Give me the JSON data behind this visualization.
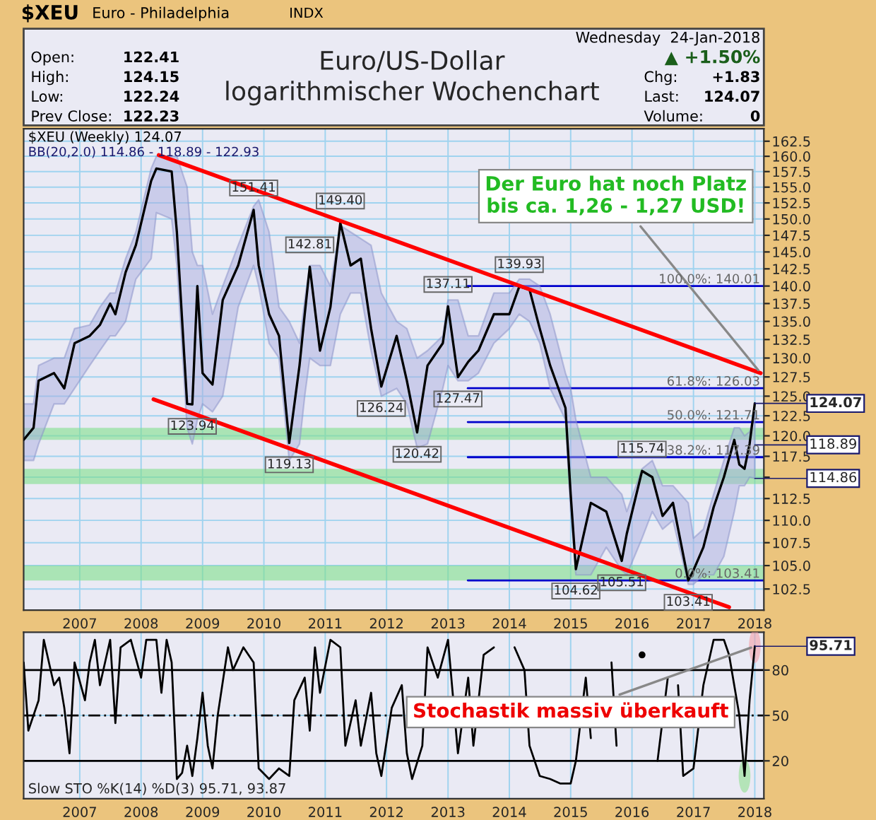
{
  "chart_data": [
    {
      "type": "line",
      "title": "Euro/US-Dollar\nlogarithmischer Wochenchart",
      "log": "y",
      "grid": true,
      "legend": false,
      "xlim": [
        "2006-02-01",
        "2018-02-24"
      ],
      "xticks": [
        {
          "value": "2007-01-01",
          "label": "2007"
        },
        {
          "value": "2008-01-01",
          "label": "2008"
        },
        {
          "value": "2009-01-01",
          "label": "2009"
        },
        {
          "value": "2010-01-01",
          "label": "2010"
        },
        {
          "value": "2011-01-01",
          "label": "2011"
        },
        {
          "value": "2012-01-01",
          "label": "2012"
        },
        {
          "value": "2013-01-01",
          "label": "2013"
        },
        {
          "value": "2014-01-01",
          "label": "2014"
        },
        {
          "value": "2015-01-01",
          "label": "2015"
        },
        {
          "value": "2016-01-01",
          "label": "2016"
        },
        {
          "value": "2017-01-01",
          "label": "2017"
        },
        {
          "value": "2018-01-01",
          "label": "2018"
        }
      ],
      "ylim": [
        100.3,
        164.6
      ],
      "yticks": [
        {
          "value": 102.5,
          "label": "102.5"
        },
        {
          "value": 105,
          "label": "105.0"
        },
        {
          "value": 107.5,
          "label": "107.5"
        },
        {
          "value": 110,
          "label": "110.0"
        },
        {
          "value": 112.5,
          "label": "112.5"
        },
        {
          "value": 115,
          "label": null
        },
        {
          "value": 117.5,
          "label": "117.5"
        },
        {
          "value": 120,
          "label": "120.0"
        },
        {
          "value": 122.5,
          "label": "122.5"
        },
        {
          "value": 125,
          "label": "125.0"
        },
        {
          "value": 127.5,
          "label": "127.5"
        },
        {
          "value": 130,
          "label": "130.0"
        },
        {
          "value": 132.5,
          "label": "132.5"
        },
        {
          "value": 135,
          "label": "135.0"
        },
        {
          "value": 137.5,
          "label": "137.5"
        },
        {
          "value": 140,
          "label": "140.0"
        },
        {
          "value": 142.5,
          "label": "142.5"
        },
        {
          "value": 145,
          "label": "145.0"
        },
        {
          "value": 147.5,
          "label": "147.5"
        },
        {
          "value": 150,
          "label": "150.0"
        },
        {
          "value": 152.5,
          "label": "152.5"
        },
        {
          "value": 155,
          "label": "155.0"
        },
        {
          "value": 157.5,
          "label": "157.5"
        },
        {
          "value": 160,
          "label": "160.0"
        },
        {
          "value": 162.5,
          "label": "162.5"
        }
      ],
      "series": [
        {
          "color": "#000000",
          "x": [
            "2006-02",
            "2006-04",
            "2006-05",
            "2006-08",
            "2006-10",
            "2006-12",
            "2007-03",
            "2007-05",
            "2007-07",
            "2007-08",
            "2007-10",
            "2007-12",
            "2008-03",
            "2008-04",
            "2008-07",
            "2008-08",
            "2008-10",
            "2008-11",
            "2008-12",
            "2009-01",
            "2009-03",
            "2009-05",
            "2009-08",
            "2009-11",
            "2009-12",
            "2010-02",
            "2010-04",
            "2010-06",
            "2010-08",
            "2010-09",
            "2010-10",
            "2010-12",
            "2011-02",
            "2011-04",
            "2011-06",
            "2011-08",
            "2011-10",
            "2011-12",
            "2012-03",
            "2012-05",
            "2012-07",
            "2012-09",
            "2012-12",
            "2013-01",
            "2013-03",
            "2013-05",
            "2013-07",
            "2013-10",
            "2014-01",
            "2014-03",
            "2014-05",
            "2014-07",
            "2014-09",
            "2014-12",
            "2015-01",
            "2015-02",
            "2015-05",
            "2015-08",
            "2015-11",
            "2015-12",
            "2016-03",
            "2016-05",
            "2016-07",
            "2016-09",
            "2016-12",
            "2017-01",
            "2017-03",
            "2017-05",
            "2017-07",
            "2017-09",
            "2017-10",
            "2017-11",
            "2017-12",
            "2018-01"
          ],
          "values": [
            119.5,
            121,
            127,
            128,
            126,
            132,
            133,
            134.5,
            137.5,
            136,
            142,
            146,
            156,
            158,
            157.5,
            148,
            124,
            123.94,
            140,
            128,
            126.5,
            138,
            143,
            151.41,
            143,
            136,
            133,
            119.13,
            129,
            136,
            142.81,
            131,
            137,
            149.4,
            143,
            144,
            134,
            126.24,
            133,
            127,
            120.42,
            129,
            132,
            137.11,
            127.47,
            129.5,
            131,
            136,
            136,
            139.93,
            139.5,
            134,
            129,
            123.5,
            113,
            104.62,
            112,
            111,
            105.51,
            108.5,
            115.74,
            115,
            110.5,
            112,
            103.41,
            104.5,
            107,
            111.5,
            115,
            119.5,
            116.5,
            116,
            119,
            124.07
          ],
          "lower": [
            117,
            117,
            119,
            124,
            124,
            126,
            129,
            131,
            133,
            133,
            135,
            141,
            144,
            151,
            150,
            143,
            121,
            119,
            122,
            124,
            123,
            125,
            137,
            143,
            140,
            132,
            130,
            117,
            119,
            125,
            130,
            129,
            129,
            136,
            139,
            139,
            131,
            125,
            126,
            124,
            118.5,
            119,
            126,
            129,
            127,
            127,
            128,
            132,
            134,
            136,
            135,
            132,
            126,
            122,
            111,
            104,
            104,
            107,
            104.5,
            104,
            108,
            111,
            109,
            110,
            103,
            103,
            104,
            104,
            106,
            111,
            114,
            114,
            115,
            114.86
          ],
          "upper": [
            124,
            124,
            129,
            130,
            130,
            134,
            134.5,
            137,
            139,
            139,
            144,
            148,
            158,
            160,
            160,
            160,
            155,
            145,
            143,
            143,
            136,
            140,
            146,
            152,
            153,
            148,
            137,
            135,
            132,
            138,
            143,
            143,
            140,
            149,
            148,
            147,
            146,
            139,
            135,
            134,
            130,
            131,
            133,
            138,
            138,
            133,
            133,
            139,
            139,
            141,
            141,
            140,
            136,
            128,
            126,
            122,
            115,
            115,
            113,
            111,
            116,
            117,
            114,
            114,
            112,
            108,
            109,
            113,
            117,
            121,
            121,
            120,
            120.5,
            122.93
          ]
        },
        {
          "type": "line",
          "color": "#ff0000",
          "x": [
            "2008-04-15",
            "2018-02-05"
          ],
          "values": [
            160.2,
            128.0
          ]
        },
        {
          "type": "line",
          "color": "#ff0000",
          "x": [
            "2008-03-15",
            "2017-08-01"
          ],
          "values": [
            124.6,
            100.6
          ]
        }
      ],
      "bands": [
        {
          "axis": "y",
          "from": 119.5,
          "to": 121.0,
          "color": "#7ee08a"
        },
        {
          "axis": "y",
          "from": 114.2,
          "to": 116.0,
          "color": "#7ee08a"
        },
        {
          "axis": "y",
          "from": 103.4,
          "to": 105.0,
          "color": "#7ee08a"
        }
      ],
      "ref_lines": [
        {
          "axis": "y",
          "value": 140.01,
          "label": "100.0%: 140.01",
          "color": "#0000cc",
          "line_style": "solid"
        },
        {
          "axis": "y",
          "value": 126.03,
          "label": "61.8%: 126.03",
          "color": "#0000cc",
          "line_style": "solid"
        },
        {
          "axis": "y",
          "value": 121.71,
          "label": "50.0%: 121.71",
          "color": "#0000cc",
          "line_style": "solid"
        },
        {
          "axis": "y",
          "value": 117.39,
          "label": "38.2%: 117.39",
          "color": "#0000cc",
          "line_style": "solid"
        },
        {
          "axis": "y",
          "value": 103.41,
          "label": "0.0%: 103.41",
          "color": "#0000cc",
          "line_style": "solid"
        }
      ],
      "annotations": [
        "$XEU",
        "Euro - Philadelphia",
        "INDX",
        "Wednesday  24-Jan-2018",
        "Open:",
        "122.41",
        "High:",
        "124.15",
        "Low:",
        "122.24",
        "Prev Close:",
        "122.23",
        "▲ +1.50%",
        "Chg:",
        "+1.83",
        "Last:",
        "124.07",
        "Volume:",
        "0",
        "$XEU (Weekly) 124.07",
        "BB(20,2.0) 114.86 - 118.89 - 122.93",
        {
          "text": "151.41",
          "x": "2009-11",
          "y": 151.41
        },
        {
          "text": "149.40",
          "x": "2011-04",
          "y": 149.4
        },
        {
          "text": "142.81",
          "x": "2010-10",
          "y": 142.81
        },
        {
          "text": "137.11",
          "x": "2013-01",
          "y": 137.11
        },
        {
          "text": "139.93",
          "x": "2014-03",
          "y": 139.93
        },
        {
          "text": "115.74",
          "x": "2016-03",
          "y": 115.74
        },
        {
          "text": "123.94",
          "x": "2008-11",
          "y": 123.94
        },
        {
          "text": "119.13",
          "x": "2010-06",
          "y": 119.13
        },
        {
          "text": "126.24",
          "x": "2011-12",
          "y": 126.24
        },
        {
          "text": "120.42",
          "x": "2012-07",
          "y": 120.42
        },
        {
          "text": "127.47",
          "x": "2013-03",
          "y": 127.47
        },
        {
          "text": "104.62",
          "x": "2015-02",
          "y": 104.62
        },
        {
          "text": "105.51",
          "x": "2015-11",
          "y": 105.51
        },
        {
          "text": "103.41",
          "x": "2016-12",
          "y": 103.41
        },
        {
          "text": "Der Euro hat noch Platz\nbis ca. 1,26 - 1,27 USD!",
          "x": "2018-02-05",
          "y": 128.0
        },
        {
          "text": "124.07",
          "x": "2018-01",
          "y": 124.07
        },
        {
          "text": "118.89",
          "x": "2018-01",
          "y": 118.89
        },
        {
          "text": "114.86",
          "x": "2018-01",
          "y": 114.86
        }
      ]
    },
    {
      "type": "line",
      "grid": true,
      "legend": false,
      "xlim": [
        "2006-02-01",
        "2018-02-24"
      ],
      "xticks": [
        {
          "value": "2007-01-01",
          "label": "2007"
        },
        {
          "value": "2008-01-01",
          "label": "2008"
        },
        {
          "value": "2009-01-01",
          "label": "2009"
        },
        {
          "value": "2010-01-01",
          "label": "2010"
        },
        {
          "value": "2011-01-01",
          "label": "2011"
        },
        {
          "value": "2012-01-01",
          "label": "2012"
        },
        {
          "value": "2013-01-01",
          "label": "2013"
        },
        {
          "value": "2014-01-01",
          "label": "2014"
        },
        {
          "value": "2015-01-01",
          "label": "2015"
        },
        {
          "value": "2016-01-01",
          "label": "2016"
        },
        {
          "value": "2017-01-01",
          "label": "2017"
        },
        {
          "value": "2018-01-01",
          "label": "2018"
        }
      ],
      "ylim": [
        -5,
        105
      ],
      "yticks": [
        20,
        50,
        80
      ],
      "series": [
        {
          "color": "#000000",
          "x": [
            "2006-02",
            "2006-03",
            "2006-05",
            "2006-06",
            "2006-08",
            "2006-09",
            "2006-10",
            "2006-11",
            "2006-12",
            "2007-02",
            "2007-03",
            "2007-04",
            "2007-05",
            "2007-07",
            "2007-08",
            "2007-09",
            "2007-11",
            "2008-01",
            "2008-02",
            "2008-04",
            "2008-05",
            "2008-06",
            "2008-07",
            "2008-08",
            "2008-09",
            "2008-10",
            "2008-11",
            "2008-12",
            "2009-01",
            "2009-02",
            "2009-03",
            "2009-04",
            "2009-06",
            "2009-07",
            "2009-09",
            "2009-11",
            "2009-12",
            "2010-02",
            "2010-04",
            "2010-06",
            "2010-07",
            "2010-09",
            "2010-10",
            "2010-11",
            "2010-12",
            "2011-02",
            "2011-04",
            "2011-05",
            "2011-07",
            "2011-08",
            "2011-10",
            "2011-11",
            "2011-12",
            "2012-02",
            "2012-04",
            "2012-05",
            "2012-06",
            "2012-08",
            "2012-09",
            "2012-11",
            "2013-01",
            "2013-03",
            "2013-05",
            "2013-06",
            "2013-08",
            "2013-10",
            "2013-12",
            "2014-02",
            "2014-04",
            "2014-05",
            "2014-07",
            "2014-09",
            "2014-11",
            "2015-01",
            "2015-02",
            "2015-04",
            "2015-05",
            "2015-07",
            "2015-09",
            "2015-10",
            "2015-12",
            "2016-01",
            "2016-03",
            "2016-05",
            "2016-06",
            "2016-08",
            "2016-09",
            "2016-10",
            "2016-11",
            "2017-01",
            "2017-03",
            "2017-05",
            "2017-07",
            "2017-08",
            "2017-10",
            "2017-11",
            "2017-12",
            "2018-01"
          ],
          "values": [
            85,
            40,
            60,
            100,
            70,
            75,
            55,
            25,
            85,
            60,
            85,
            100,
            70,
            100,
            45,
            95,
            100,
            75,
            100,
            100,
            65,
            100,
            85,
            8,
            12,
            30,
            10,
            35,
            65,
            30,
            15,
            50,
            95,
            80,
            95,
            85,
            15,
            8,
            15,
            10,
            60,
            75,
            40,
            95,
            65,
            100,
            95,
            30,
            60,
            30,
            65,
            25,
            10,
            55,
            70,
            25,
            8,
            30,
            95,
            75,
            100,
            25,
            75,
            30,
            90,
            95,
            null,
            95,
            80,
            30,
            10,
            8,
            5,
            5,
            20,
            75,
            35,
            null,
            85,
            30,
            null,
            null,
            90,
            null,
            20,
            75,
            null,
            70,
            10,
            15,
            70,
            100,
            100,
            90,
            50,
            10,
            60,
            95.71
          ]
        }
      ],
      "ref_lines": [
        {
          "axis": "y",
          "value": 80,
          "color": "#000000",
          "line_style": "solid"
        },
        {
          "axis": "y",
          "value": 50,
          "color": "#000000",
          "line_style": "dashed"
        },
        {
          "axis": "y",
          "value": 20,
          "color": "#000000",
          "line_style": "solid"
        }
      ],
      "annotations": [
        "Slow STO %K(14) %D(3) 95.71, 93.87",
        {
          "text": "Stochastik massiv überkauft",
          "x": "2018-01",
          "y": 95.71
        },
        {
          "text": "95.71",
          "x": "2018-01",
          "y": 95.71
        }
      ]
    }
  ]
}
